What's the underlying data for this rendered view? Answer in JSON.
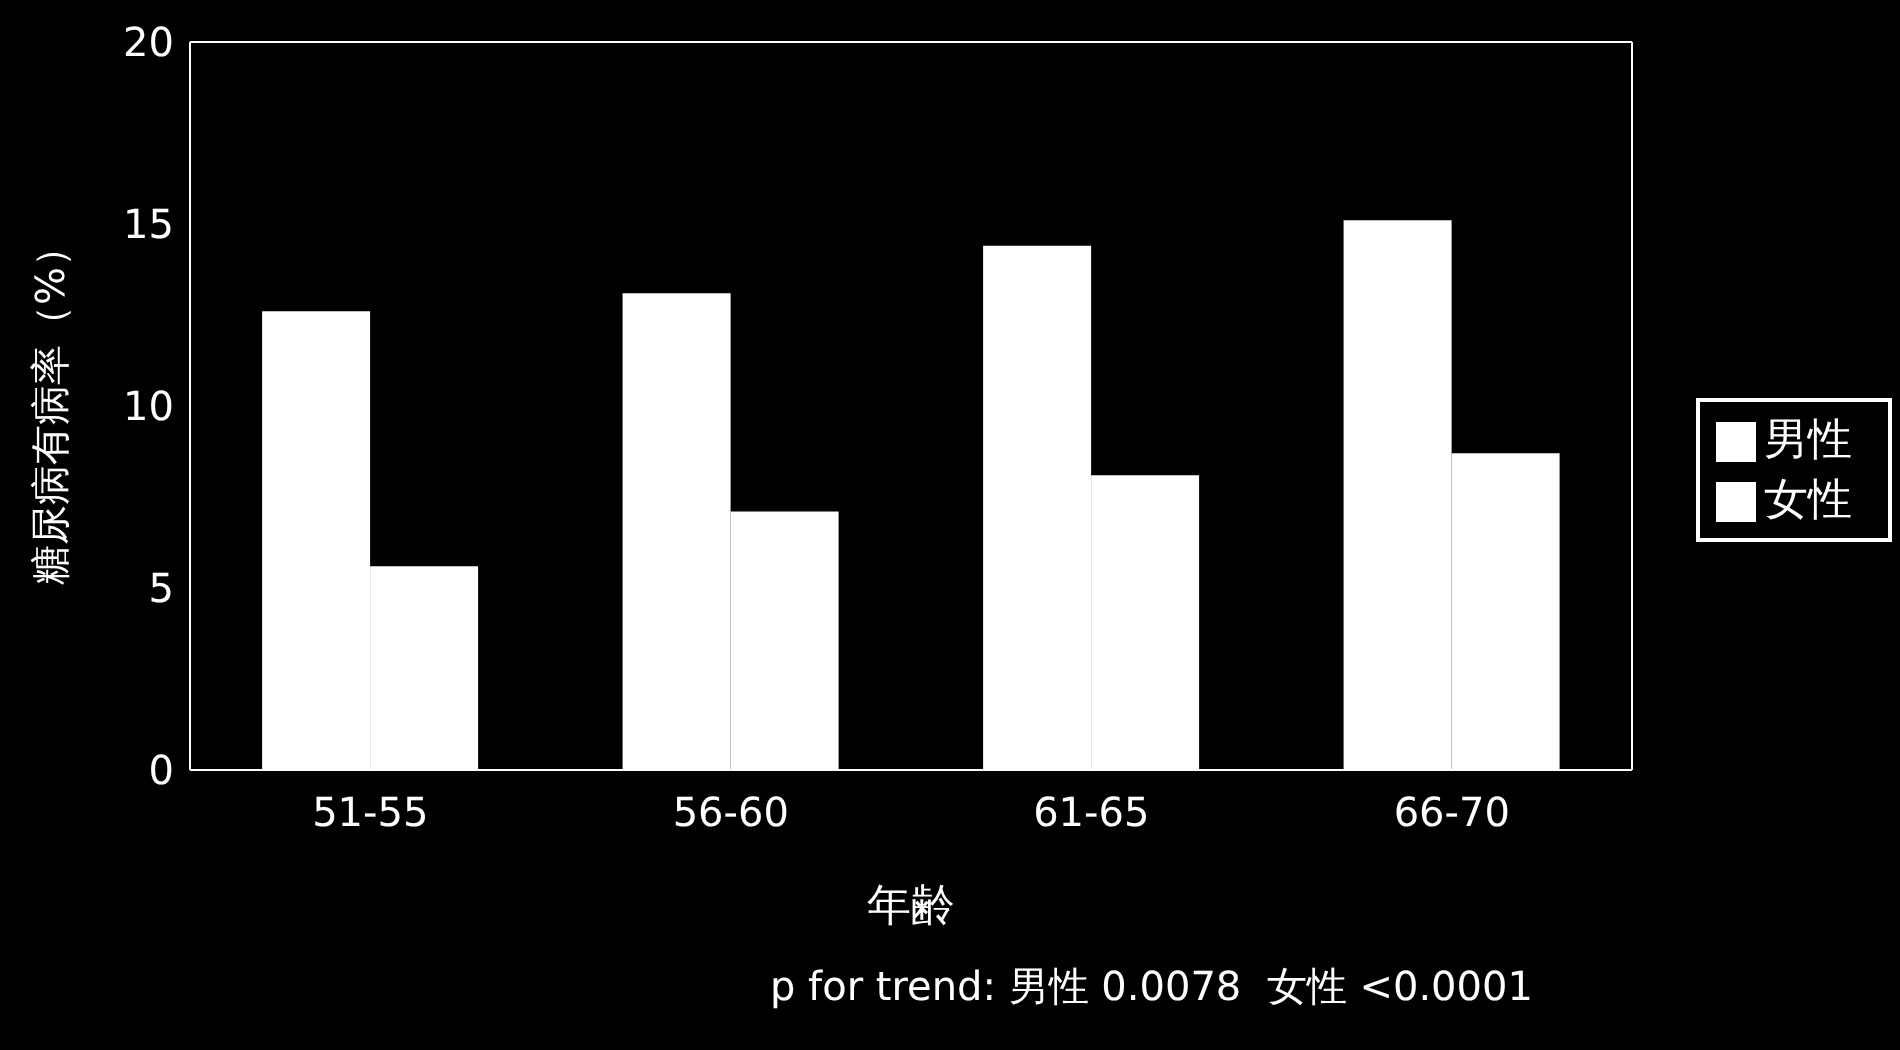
{
  "chart_data": {
    "type": "bar",
    "xlabel": "年齢",
    "ylabel": "糖尿病有病率（%）",
    "categories": [
      "51-55",
      "56-60",
      "61-65",
      "66-70"
    ],
    "series": [
      {
        "name": "男性",
        "color": "#ffffff",
        "values": [
          12.6,
          13.1,
          14.4,
          15.1
        ]
      },
      {
        "name": "女性",
        "color": "#ffffff",
        "values": [
          5.6,
          7.1,
          8.1,
          8.7
        ]
      }
    ],
    "ylim": [
      0,
      20
    ],
    "yticks": [
      0,
      5,
      10,
      15,
      20
    ],
    "grid": false,
    "legend": "right",
    "annotations": [
      "p for trend: 男性 0.0078  女性 <0.0001"
    ]
  }
}
